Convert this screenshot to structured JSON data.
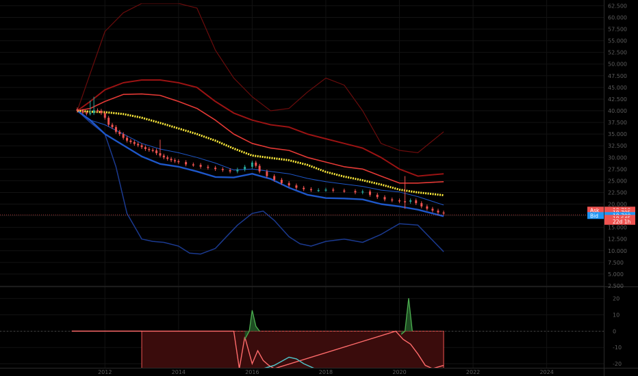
{
  "colors": {
    "background": "#000000",
    "grid": "#131313",
    "axis_text": "#5d5d5d",
    "candle_up": "#26a69a",
    "candle_down": "#ef5350",
    "ma_yellow": "#ffeb3b",
    "band_red_outer": "#6b0c0c",
    "band_red_mid": "#9b1313",
    "band_red_inner": "#e53935",
    "band_blue_inner": "#1e57c9",
    "band_blue_outer": "#1b3a90",
    "ask_tag": "#ef5350",
    "bid_tag": "#2196f3",
    "osc_fill": "#3a0c0c",
    "osc_line": "#ff6b6b",
    "osc_spike": "#4caf50",
    "osc_cyan": "#4fc3c7"
  },
  "chart_data": [
    {
      "type": "line",
      "title": "",
      "x_ticks": [
        "2012",
        "2014",
        "2016",
        "2018",
        "2020",
        "2022",
        "2024"
      ],
      "x_tick_values": [
        2012,
        2014,
        2016,
        2018,
        2020,
        2022,
        2024
      ],
      "xlim": [
        2009.15,
        2025.55
      ],
      "ylim": [
        2.5,
        63.0
      ],
      "y_ticks": [
        "62.500",
        "60.000",
        "57.500",
        "55.000",
        "52.500",
        "50.000",
        "47.500",
        "45.000",
        "42.500",
        "40.000",
        "37.500",
        "35.000",
        "32.500",
        "30.000",
        "27.500",
        "25.000",
        "22.500",
        "20.000",
        "17.500",
        "15.000",
        "12.500",
        "10.000",
        "7.500",
        "5.000",
        "2.500"
      ],
      "y_tick_values": [
        62.5,
        60,
        57.5,
        55,
        52.5,
        50,
        47.5,
        45,
        42.5,
        40,
        37.5,
        35,
        32.5,
        30,
        27.5,
        25,
        22.5,
        20,
        17.5,
        15,
        12.5,
        10,
        7.5,
        5,
        2.5
      ],
      "price_tags": [
        {
          "label": "Ask",
          "value": "18.710",
          "y": 18.71,
          "kind": "ask"
        },
        {
          "label": "",
          "value": "18.705",
          "y": 18.2,
          "kind": "plain"
        },
        {
          "label": "Bid",
          "value": "18.700",
          "y": 17.55,
          "kind": "bid"
        },
        {
          "label": "",
          "value": "18.645",
          "y": 16.95,
          "kind": "plain"
        },
        {
          "label": "",
          "value": "22d 1h",
          "y": 16.3,
          "kind": "plain"
        }
      ],
      "current_price": 17.7,
      "series": [
        {
          "role": "candles",
          "x": [
            2011.25,
            2011.4,
            2011.5,
            2011.6,
            2011.7,
            2011.8,
            2011.9,
            2012.0,
            2012.1,
            2012.2,
            2012.3,
            2012.4,
            2012.5,
            2012.6,
            2012.7,
            2012.8,
            2012.9,
            2013.0,
            2013.1,
            2013.2,
            2013.3,
            2013.4,
            2013.5,
            2013.6,
            2013.7,
            2013.8,
            2013.9,
            2014.0,
            2014.2,
            2014.4,
            2014.6,
            2014.8,
            2015.0,
            2015.2,
            2015.4,
            2015.6,
            2015.8,
            2016.0,
            2016.1,
            2016.2,
            2016.4,
            2016.6,
            2016.8,
            2017.0,
            2017.2,
            2017.4,
            2017.6,
            2017.8,
            2018.0,
            2018.2,
            2018.5,
            2018.8,
            2019.0,
            2019.2,
            2019.4,
            2019.6,
            2019.8,
            2020.0,
            2020.15,
            2020.3,
            2020.45,
            2020.6,
            2020.75,
            2020.9,
            2021.05,
            2021.2
          ],
          "values": [
            40.0,
            39.6,
            39.4,
            39.5,
            40.1,
            40.0,
            39.5,
            38.5,
            37.0,
            36.5,
            35.5,
            35.0,
            34.2,
            33.6,
            33.3,
            32.9,
            32.6,
            32.2,
            31.8,
            31.6,
            31.5,
            30.9,
            30.4,
            30.0,
            29.7,
            29.4,
            29.2,
            29.0,
            28.5,
            28.4,
            28.0,
            27.8,
            27.5,
            27.3,
            27.0,
            27.4,
            28.0,
            28.9,
            28.2,
            27.0,
            26.0,
            25.2,
            24.5,
            24.0,
            23.5,
            23.2,
            23.0,
            23.0,
            23.1,
            22.9,
            22.8,
            22.5,
            22.7,
            22.0,
            21.5,
            21.0,
            20.8,
            20.6,
            20.5,
            20.8,
            20.2,
            19.5,
            19.0,
            18.6,
            18.2,
            18.0
          ]
        },
        {
          "role": "ma_yellow",
          "x": [
            2011.25,
            2011.6,
            2012.0,
            2012.5,
            2013.0,
            2013.5,
            2014.0,
            2014.5,
            2015.0,
            2015.5,
            2016.0,
            2016.5,
            2017.0,
            2017.5,
            2018.0,
            2018.5,
            2019.0,
            2019.5,
            2020.0,
            2020.5,
            2021.2
          ],
          "values": [
            40.0,
            39.8,
            39.7,
            39.3,
            38.5,
            37.4,
            36.2,
            35.0,
            33.6,
            31.9,
            30.4,
            29.9,
            29.4,
            28.4,
            26.9,
            25.9,
            25.1,
            24.2,
            23.1,
            22.5,
            21.9
          ]
        },
        {
          "role": "band_red_outer",
          "x": [
            2011.25,
            2011.6,
            2012.0,
            2012.5,
            2013.0,
            2013.5,
            2014.0,
            2014.5,
            2015.0,
            2015.5,
            2016.0,
            2016.5,
            2017.0,
            2017.5,
            2018.0,
            2018.5,
            2019.0,
            2019.5,
            2020.0,
            2020.5,
            2021.2
          ],
          "values": [
            40.0,
            48.0,
            57.0,
            61.0,
            63.0,
            63.0,
            63.0,
            62.0,
            53.0,
            47.0,
            43.0,
            40.0,
            40.5,
            44.0,
            47.0,
            45.5,
            40.0,
            33.0,
            31.5,
            31.0,
            35.5
          ]
        },
        {
          "role": "band_red_mid",
          "x": [
            2011.25,
            2011.6,
            2012.0,
            2012.5,
            2013.0,
            2013.5,
            2014.0,
            2014.5,
            2015.0,
            2015.5,
            2016.0,
            2016.5,
            2017.0,
            2017.5,
            2018.0,
            2018.5,
            2019.0,
            2019.5,
            2020.0,
            2020.5,
            2021.2
          ],
          "values": [
            40.0,
            42.0,
            44.5,
            46.0,
            46.6,
            46.6,
            46.0,
            45.0,
            42.0,
            39.5,
            38.0,
            37.0,
            36.5,
            35.0,
            34.0,
            33.0,
            32.0,
            30.0,
            27.5,
            26.0,
            26.5
          ]
        },
        {
          "role": "band_red_inner",
          "x": [
            2011.25,
            2011.6,
            2012.0,
            2012.5,
            2013.0,
            2013.5,
            2014.0,
            2014.5,
            2015.0,
            2015.5,
            2016.0,
            2016.5,
            2017.0,
            2017.5,
            2018.0,
            2018.5,
            2019.0,
            2019.5,
            2020.0,
            2020.5,
            2021.2
          ],
          "values": [
            40.0,
            40.5,
            42.0,
            43.5,
            43.6,
            43.3,
            42.0,
            40.5,
            38.0,
            35.0,
            33.0,
            32.0,
            31.5,
            30.0,
            29.0,
            28.0,
            27.5,
            26.0,
            24.5,
            24.5,
            24.8
          ]
        },
        {
          "role": "band_blue_inner",
          "x": [
            2011.25,
            2011.6,
            2012.0,
            2012.5,
            2013.0,
            2013.5,
            2014.0,
            2014.5,
            2015.0,
            2015.5,
            2016.0,
            2016.5,
            2017.0,
            2017.5,
            2018.0,
            2018.5,
            2019.0,
            2019.5,
            2020.0,
            2020.5,
            2021.2
          ],
          "values": [
            40.0,
            38.0,
            37.0,
            35.0,
            33.0,
            31.8,
            31.0,
            30.0,
            28.8,
            27.3,
            27.5,
            27.0,
            26.5,
            25.5,
            24.8,
            24.3,
            23.8,
            23.0,
            22.6,
            21.6,
            19.8
          ]
        },
        {
          "role": "band_blue_main",
          "x": [
            2011.25,
            2011.6,
            2012.0,
            2012.5,
            2013.0,
            2013.5,
            2014.0,
            2014.5,
            2015.0,
            2015.5,
            2016.0,
            2016.5,
            2017.0,
            2017.5,
            2018.0,
            2018.5,
            2019.0,
            2019.5,
            2020.0,
            2020.5,
            2021.2
          ],
          "values": [
            40.0,
            38.0,
            35.0,
            32.6,
            30.2,
            28.6,
            28.0,
            27.0,
            25.8,
            25.7,
            26.5,
            25.4,
            23.5,
            22.0,
            21.3,
            21.2,
            21.0,
            20.0,
            19.5,
            18.8,
            17.4
          ]
        },
        {
          "role": "band_blue_outer",
          "x": [
            2011.25,
            2011.6,
            2012.0,
            2012.3,
            2012.6,
            2013.0,
            2013.3,
            2013.6,
            2014.0,
            2014.3,
            2014.6,
            2015.0,
            2015.3,
            2015.6,
            2016.0,
            2016.3,
            2016.6,
            2017.0,
            2017.3,
            2017.6,
            2018.0,
            2018.5,
            2019.0,
            2019.5,
            2020.0,
            2020.5,
            2021.2
          ],
          "values": [
            40.0,
            37.5,
            35.0,
            28.0,
            18.0,
            12.5,
            12.0,
            11.8,
            11.0,
            9.5,
            9.3,
            10.5,
            13.0,
            15.5,
            18.0,
            18.5,
            16.5,
            13.0,
            11.5,
            11.0,
            12.0,
            12.5,
            11.8,
            13.5,
            15.8,
            15.5,
            9.8
          ]
        }
      ]
    },
    {
      "type": "area",
      "title": "",
      "x_ticks": [
        "2012",
        "2014",
        "2016",
        "2018",
        "2020",
        "2022",
        "2024"
      ],
      "x_tick_values": [
        2012,
        2014,
        2016,
        2018,
        2020,
        2022,
        2024
      ],
      "xlim": [
        2009.15,
        2025.55
      ],
      "ylim": [
        -22.5,
        27.0
      ],
      "y_ticks": [
        "20",
        "10",
        "0",
        "-10",
        "-20"
      ],
      "y_tick_values": [
        20,
        10,
        0,
        -10,
        -20
      ],
      "zero_line": 0,
      "series": [
        {
          "role": "histogram_fill",
          "x": [
            2013.0,
            2021.2
          ],
          "values": [
            -23,
            -23
          ]
        },
        {
          "role": "oscillator_red",
          "x": [
            2011.1,
            2012.5,
            2013.0,
            2015.5,
            2015.65,
            2015.8,
            2016.0,
            2016.15,
            2016.3,
            2016.45,
            2016.6,
            2019.9,
            2020.1,
            2020.3,
            2020.5,
            2020.7,
            2020.9,
            2021.2
          ],
          "values": [
            0,
            0,
            0,
            0,
            -23,
            -3.5,
            -20,
            -12,
            -18,
            -21,
            -23,
            0,
            -5,
            -8,
            -14,
            -21,
            -23,
            -21
          ]
        },
        {
          "role": "oscillator_spike_green",
          "x": [
            2015.8,
            2015.92,
            2016.0,
            2016.1,
            2016.2,
            2020.05,
            2020.15,
            2020.25,
            2020.35
          ],
          "values": [
            -5,
            0,
            12.8,
            3.0,
            0,
            -2,
            0,
            20.2,
            0
          ]
        },
        {
          "role": "oscillator_cyan",
          "x": [
            2016.3,
            2016.6,
            2017.0,
            2017.2,
            2017.4,
            2017.7
          ],
          "values": [
            -23,
            -21,
            -16,
            -17,
            -20,
            -23
          ]
        }
      ]
    }
  ]
}
